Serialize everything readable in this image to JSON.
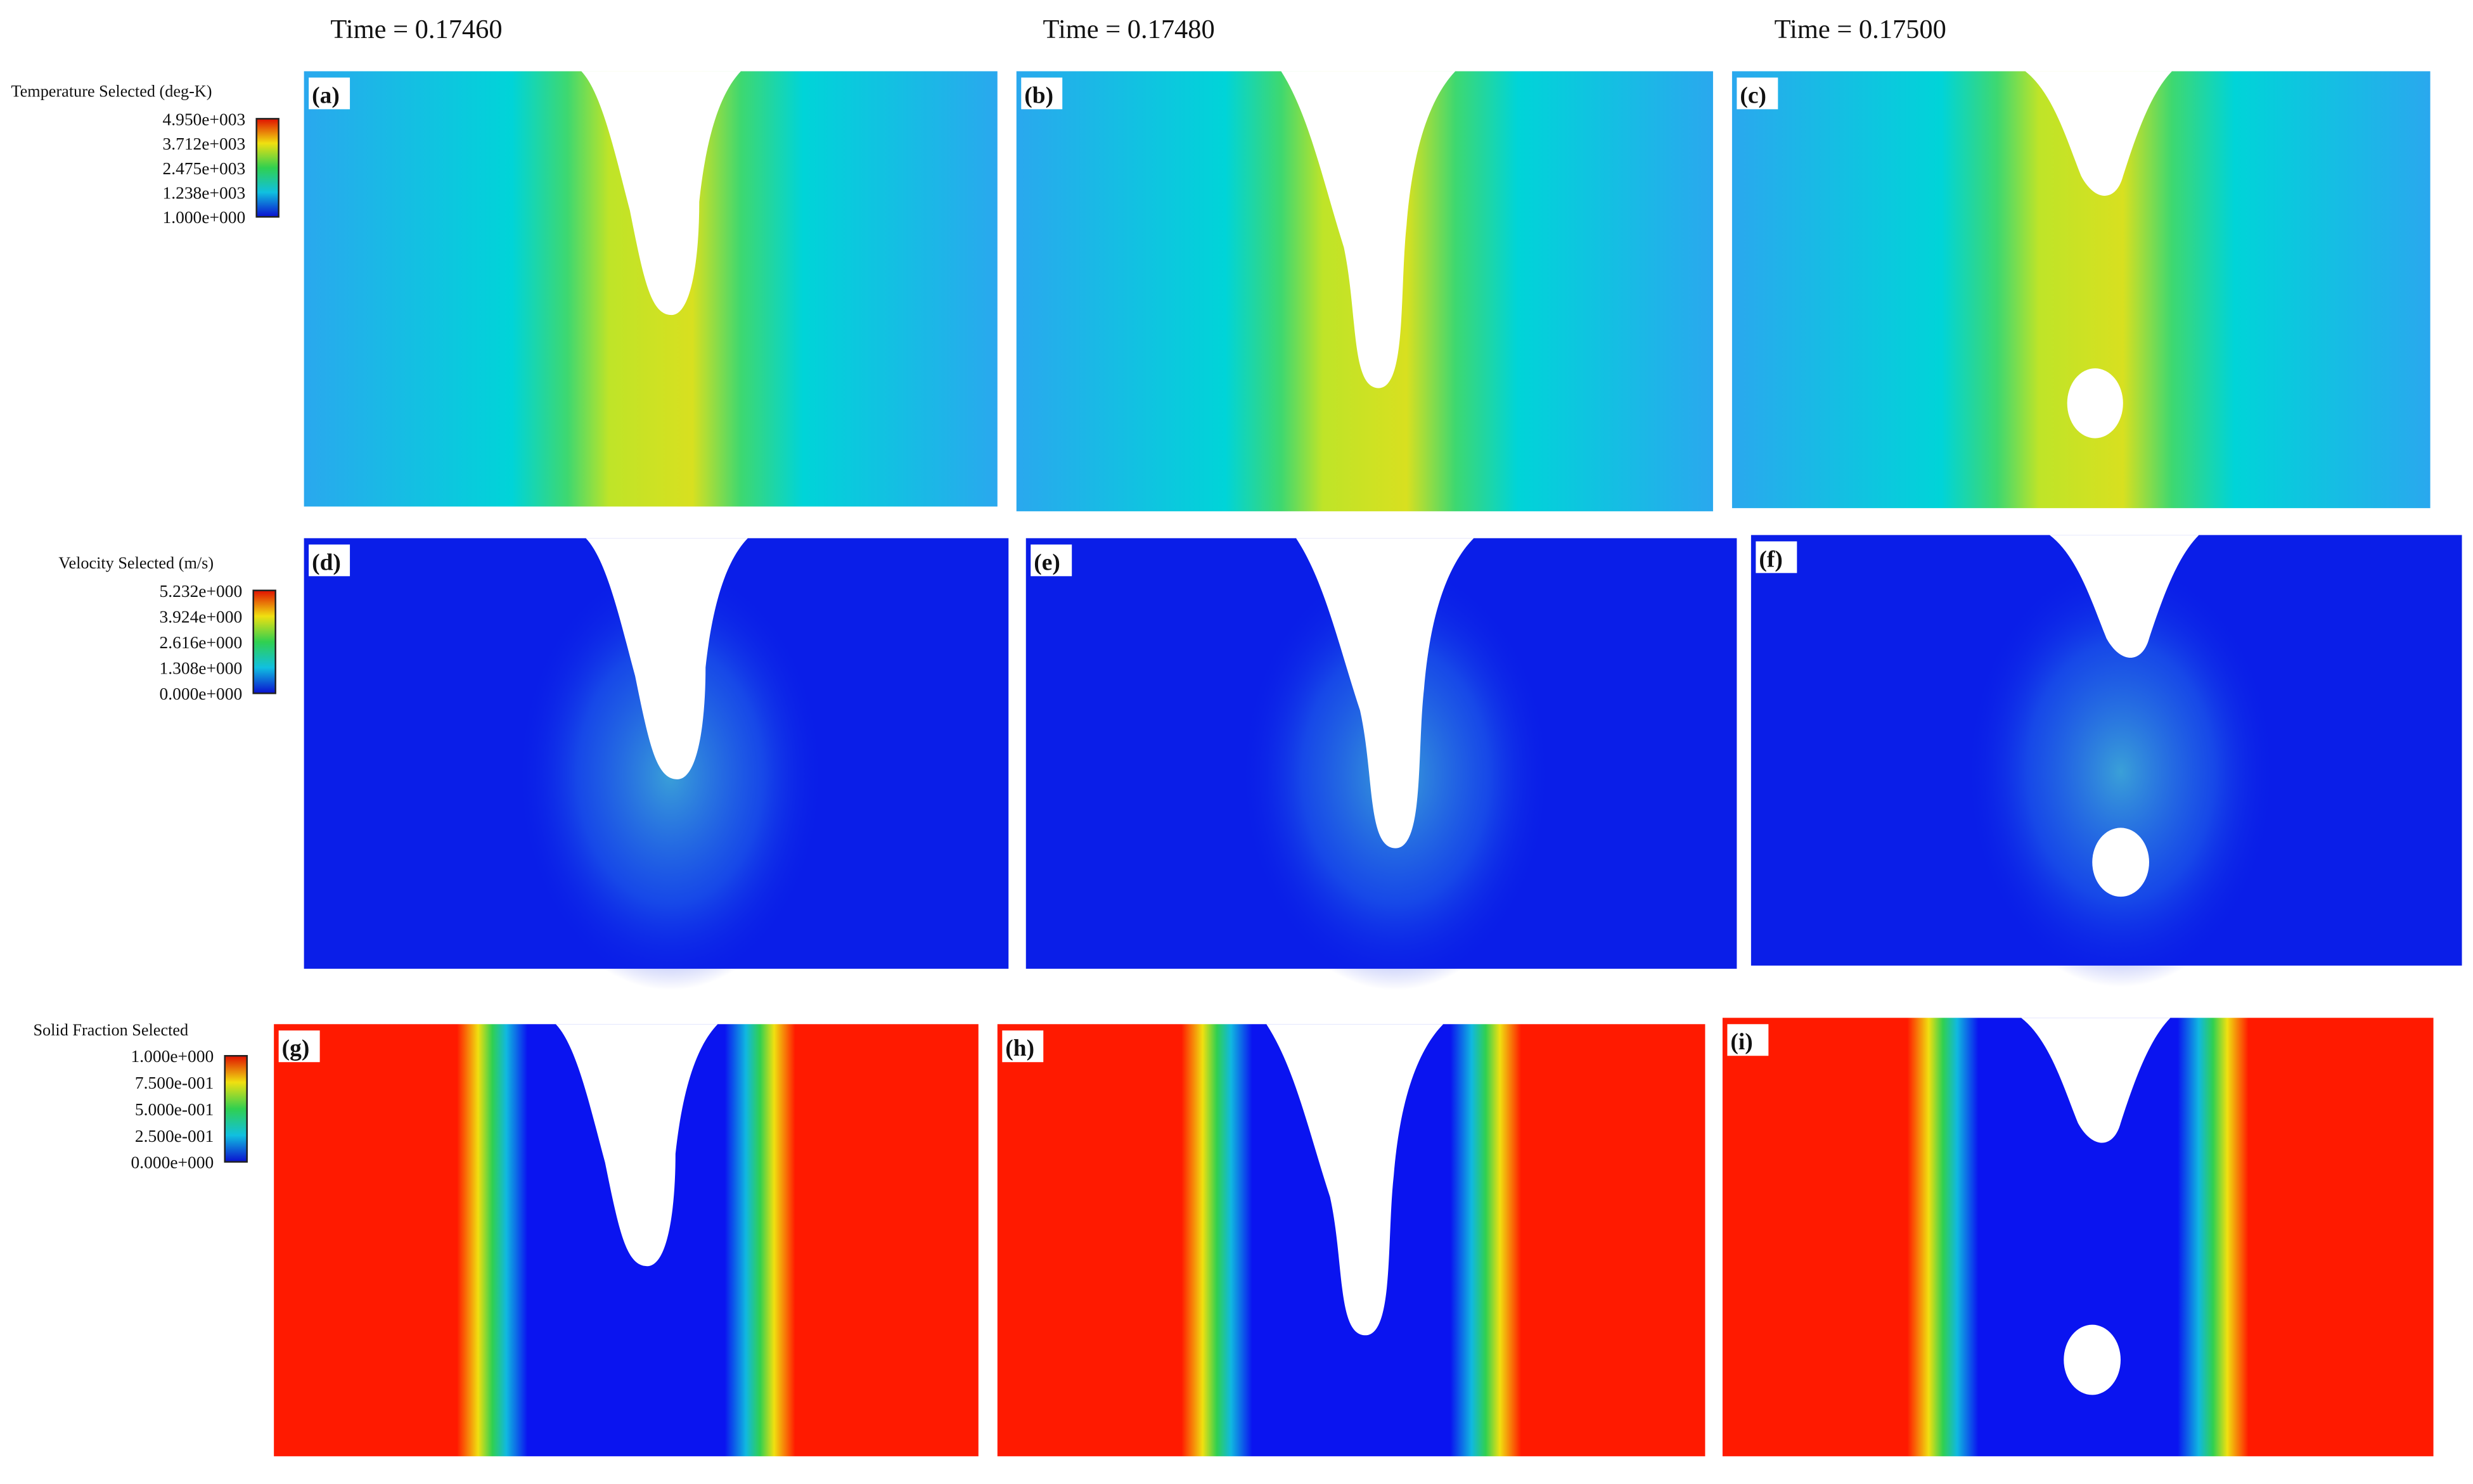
{
  "times": [
    "Time = 0.17460",
    "Time = 0.17480",
    "Time = 0.17500"
  ],
  "rows": [
    {
      "legend": {
        "title": "Temperature Selected (deg-K)",
        "ticks": [
          "4.950e+003",
          "3.712e+003",
          "2.475e+003",
          "1.238e+003",
          "1.000e+000"
        ]
      },
      "panels": [
        "(a)",
        "(b)",
        "(c)"
      ]
    },
    {
      "legend": {
        "title": "Velocity Selected (m/s)",
        "ticks": [
          "5.232e+000",
          "3.924e+000",
          "2.616e+000",
          "1.308e+000",
          "0.000e+000"
        ]
      },
      "panels": [
        "(d)",
        "(e)",
        "(f)"
      ]
    },
    {
      "legend": {
        "title": "Solid Fraction Selected",
        "ticks": [
          "1.000e+000",
          "7.500e-001",
          "5.000e-001",
          "2.500e-001",
          "0.000e+000"
        ]
      },
      "panels": [
        "(g)",
        "(h)",
        "(i)"
      ]
    }
  ]
}
